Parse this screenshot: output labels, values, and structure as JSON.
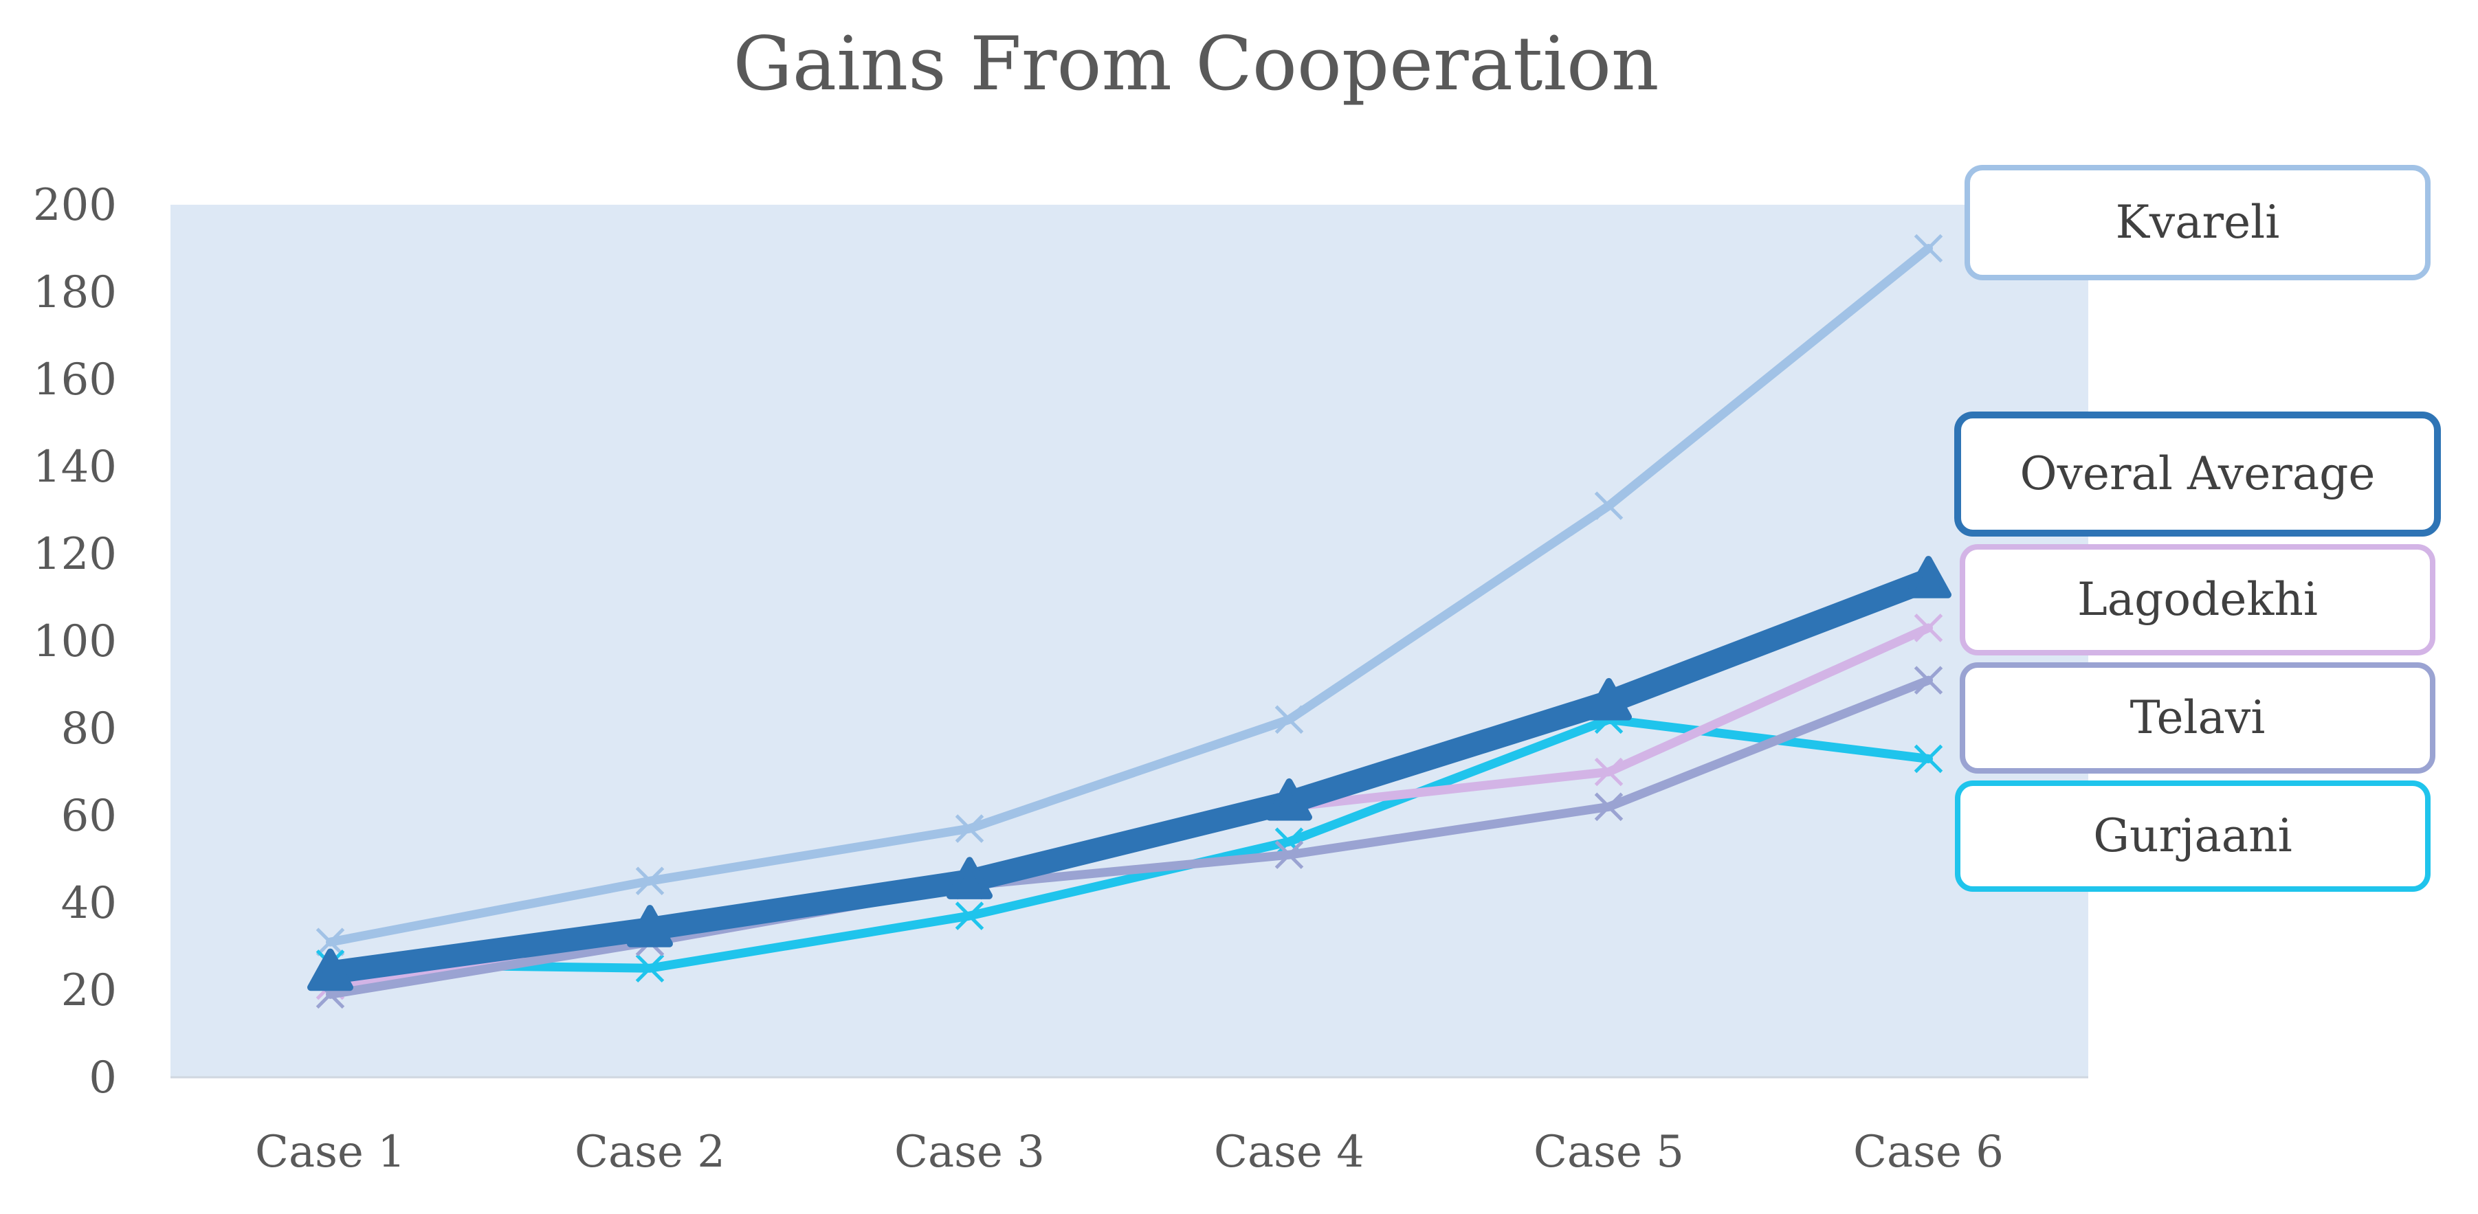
{
  "chart_data": {
    "type": "line",
    "title": "Gains From Cooperation",
    "xlabel": "",
    "ylabel": "",
    "categories": [
      "Case 1",
      "Case 2",
      "Case 3",
      "Case 4",
      "Case 5",
      "Case 6"
    ],
    "ylim": [
      0,
      200
    ],
    "yticks": [
      0,
      20,
      40,
      60,
      80,
      100,
      120,
      140,
      160,
      180,
      200
    ],
    "grid": false,
    "plot_background": "#dde8f5",
    "legend_placement": "right, labels beside series ends",
    "series": [
      {
        "name": "Kvareli",
        "values": [
          31,
          45,
          57,
          82,
          131,
          190
        ],
        "color": "#a1c2e6",
        "marker": "x",
        "emphasis": false
      },
      {
        "name": "Gurjaani",
        "values": [
          26,
          25,
          37,
          54,
          82,
          73
        ],
        "color": "#1fc4ec",
        "marker": "x",
        "emphasis": false
      },
      {
        "name": "Lagodekhi",
        "values": [
          21,
          31,
          44,
          62,
          70,
          103
        ],
        "color": "#d3b4e6",
        "marker": "x",
        "emphasis": false
      },
      {
        "name": "Telavi",
        "values": [
          19,
          31,
          44,
          51,
          62,
          91
        ],
        "color": "#9aa3d2",
        "marker": "x",
        "emphasis": false
      },
      {
        "name": "Overal Average",
        "values": [
          24,
          34,
          45,
          63,
          86,
          114
        ],
        "color": "#2e74b5",
        "marker": "triangle",
        "emphasis": true
      }
    ],
    "legend_order": [
      "Kvareli",
      "Overal Average",
      "Lagodekhi",
      "Telavi",
      "Gurjaani"
    ]
  }
}
